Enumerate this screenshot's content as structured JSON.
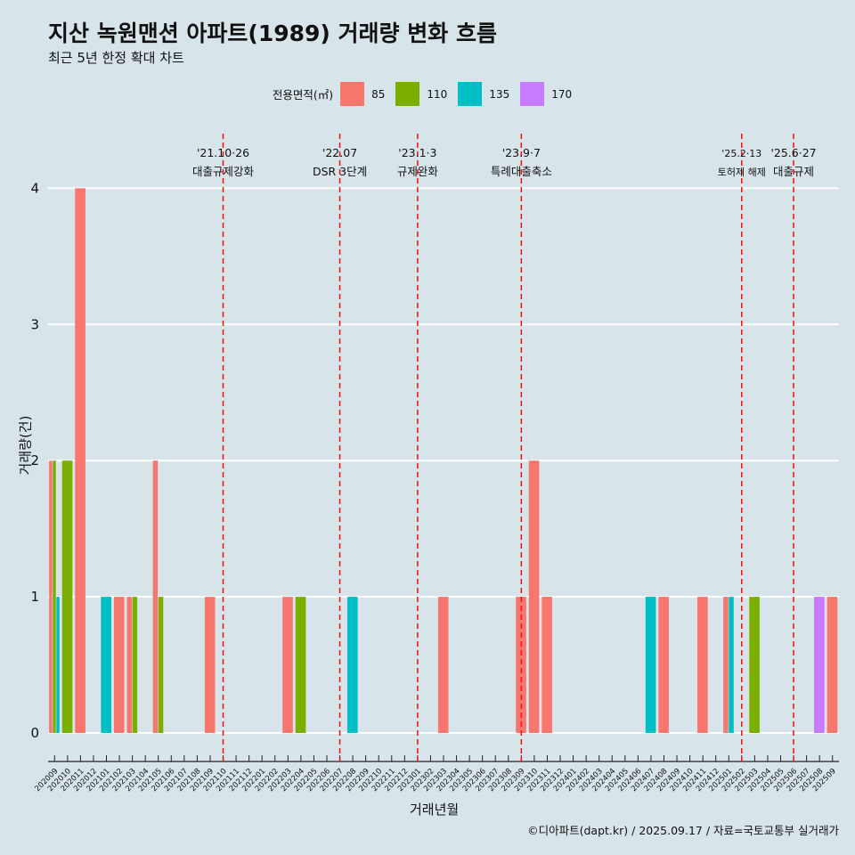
{
  "title": "지산 녹원맨션 아파트(1989) 거래량 변화 흐름",
  "subtitle": "최근 5년 한정 확대 차트",
  "legend_title": "전용면적(㎡)",
  "caption": "©디아파트(dapt.kr) / 2025.09.17 / 자료=국토교통부 실거래가",
  "chart_data": {
    "type": "bar",
    "xlabel": "거래년월",
    "ylabel": "거래량(건)",
    "ylim": [
      0,
      4
    ],
    "yticks": [
      0,
      1,
      2,
      3,
      4
    ],
    "grid": true,
    "legend_position": "top",
    "categories": [
      "202009",
      "202010",
      "202011",
      "202012",
      "202101",
      "202102",
      "202103",
      "202104",
      "202105",
      "202106",
      "202107",
      "202108",
      "202109",
      "202110",
      "202111",
      "202112",
      "202201",
      "202202",
      "202203",
      "202204",
      "202205",
      "202206",
      "202207",
      "202208",
      "202209",
      "202210",
      "202211",
      "202212",
      "202301",
      "202302",
      "202303",
      "202304",
      "202305",
      "202306",
      "202307",
      "202308",
      "202309",
      "202310",
      "202311",
      "202312",
      "202401",
      "202402",
      "202403",
      "202404",
      "202405",
      "202406",
      "202407",
      "202408",
      "202409",
      "202410",
      "202411",
      "202412",
      "202501",
      "202502",
      "202503",
      "202504",
      "202505",
      "202506",
      "202507",
      "202508",
      "202509"
    ],
    "series": [
      {
        "name": "85",
        "color": "#f8766d",
        "values": [
          2,
          0,
          4,
          0,
          0,
          1,
          1,
          0,
          2,
          0,
          0,
          0,
          1,
          0,
          0,
          0,
          0,
          0,
          1,
          0,
          0,
          0,
          0,
          0,
          0,
          0,
          0,
          0,
          0,
          0,
          1,
          0,
          0,
          0,
          0,
          0,
          1,
          2,
          1,
          0,
          0,
          0,
          0,
          0,
          0,
          0,
          0,
          1,
          0,
          0,
          1,
          0,
          1,
          0,
          0,
          0,
          0,
          0,
          0,
          0,
          1
        ]
      },
      {
        "name": "110",
        "color": "#7cae00",
        "values": [
          2,
          2,
          0,
          0,
          0,
          0,
          1,
          0,
          1,
          0,
          0,
          0,
          0,
          0,
          0,
          0,
          0,
          0,
          0,
          1,
          0,
          0,
          0,
          0,
          0,
          0,
          0,
          0,
          0,
          0,
          0,
          0,
          0,
          0,
          0,
          0,
          0,
          0,
          0,
          0,
          0,
          0,
          0,
          0,
          0,
          0,
          0,
          0,
          0,
          0,
          0,
          0,
          0,
          0,
          1,
          0,
          0,
          0,
          0,
          0,
          0
        ]
      },
      {
        "name": "135",
        "color": "#00bfc4",
        "values": [
          1,
          0,
          0,
          0,
          1,
          0,
          0,
          0,
          0,
          0,
          0,
          0,
          0,
          0,
          0,
          0,
          0,
          0,
          0,
          0,
          0,
          0,
          0,
          1,
          0,
          0,
          0,
          0,
          0,
          0,
          0,
          0,
          0,
          0,
          0,
          0,
          0,
          0,
          0,
          0,
          0,
          0,
          0,
          0,
          0,
          0,
          1,
          0,
          0,
          0,
          0,
          0,
          1,
          0,
          0,
          0,
          0,
          0,
          0,
          0,
          0
        ]
      },
      {
        "name": "170",
        "color": "#c77cff",
        "values": [
          0,
          0,
          0,
          0,
          0,
          0,
          0,
          0,
          0,
          0,
          0,
          0,
          0,
          0,
          0,
          0,
          0,
          0,
          0,
          0,
          0,
          0,
          0,
          0,
          0,
          0,
          0,
          0,
          0,
          0,
          0,
          0,
          0,
          0,
          0,
          0,
          0,
          0,
          0,
          0,
          0,
          0,
          0,
          0,
          0,
          0,
          0,
          0,
          0,
          0,
          0,
          0,
          0,
          0,
          0,
          0,
          0,
          0,
          0,
          1,
          0
        ]
      }
    ],
    "annotations": [
      {
        "date": "202110",
        "line1": "'21.10·26",
        "line2": "대출규제강화"
      },
      {
        "date": "202207",
        "line1": "'22.07",
        "line2": "DSR 3단계"
      },
      {
        "date": "202301",
        "line1": "'23.1·3",
        "line2": "규제완화"
      },
      {
        "date": "202309",
        "line1": "'23.9·7",
        "line2": "특례대출축소"
      },
      {
        "date": "202502",
        "line1": "'25.2·13",
        "line2": "토허제 해제"
      },
      {
        "date": "202506",
        "line1": "'25.6·27",
        "line2": "대출규제"
      }
    ],
    "annotation_line_color": "#ee1111"
  }
}
